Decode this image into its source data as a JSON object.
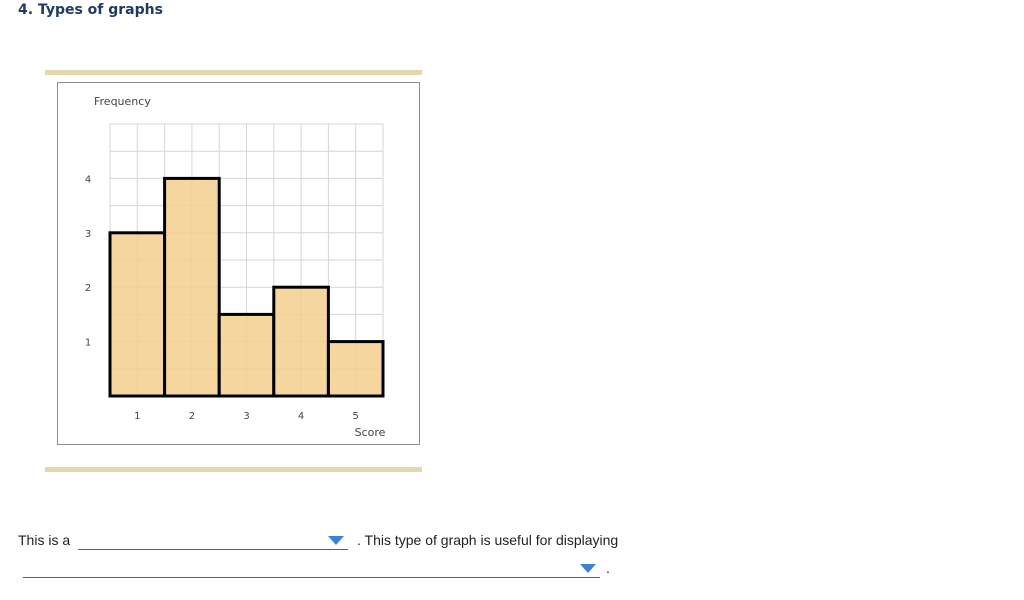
{
  "question": {
    "title": "4. Types of graphs"
  },
  "chart_data": {
    "type": "bar",
    "variant": "histogram",
    "title": "",
    "xlabel": "Score",
    "ylabel": "Frequency",
    "categories": [
      "1",
      "2",
      "3",
      "4",
      "5"
    ],
    "values": [
      3,
      4,
      1.5,
      2,
      1
    ],
    "xticks": [
      "1",
      "2",
      "3",
      "4",
      "5"
    ],
    "yticks": [
      "1",
      "2",
      "3",
      "4"
    ],
    "ylim": [
      0,
      5
    ],
    "grid": true,
    "bar_color": "#f5cf8e",
    "bar_outline": "#000000"
  },
  "sentence": {
    "prefix": "This is a",
    "middle": ". This type of graph is useful for displaying",
    "suffix": "."
  },
  "dropdowns": {
    "graph_type": {
      "selected": ""
    },
    "usage": {
      "selected": ""
    }
  },
  "colors": {
    "title": "#1f3a64",
    "rule": "#e3d7ad",
    "dropdown_accent": "#3b82d8"
  }
}
